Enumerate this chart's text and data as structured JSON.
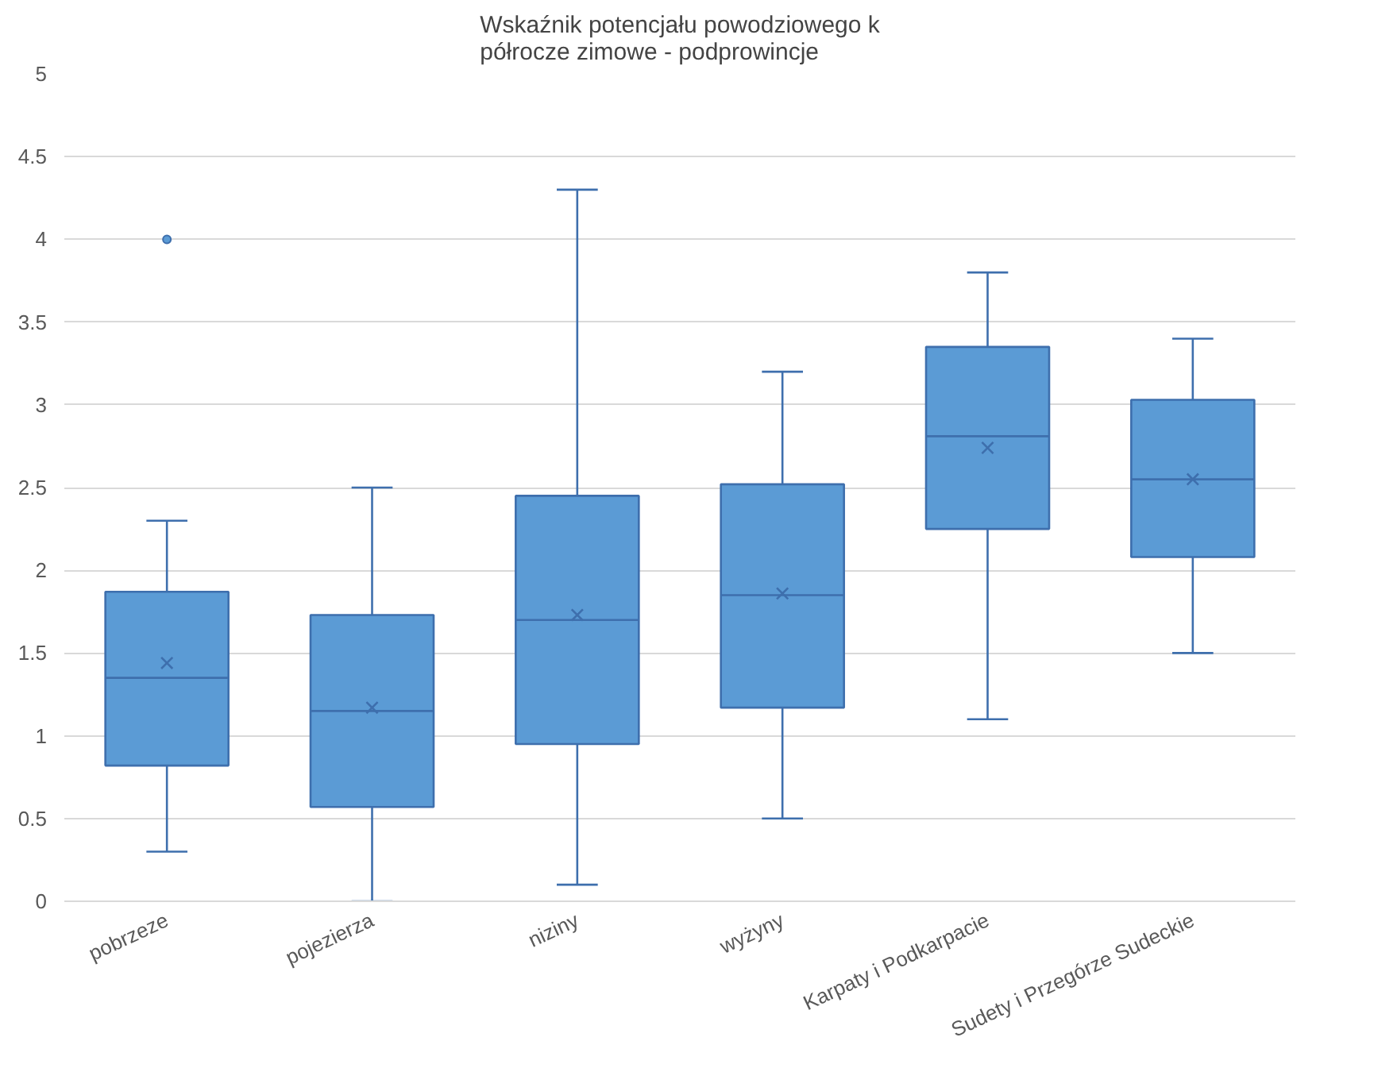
{
  "chart_data": {
    "type": "box",
    "title": "Wskaźnik potencjału powodziowego k\n półrocze zimowe -  podprowincje",
    "categories": [
      "pobrzeze",
      "pojezierza",
      "niziny",
      "wyżyny",
      "Karpaty i Podkarpacie",
      "Sudety i Przegórze Sudeckie"
    ],
    "color": "#5b9bd5",
    "boxes": [
      {
        "low": 0.3,
        "q1": 0.82,
        "median": 1.35,
        "q3": 1.87,
        "high": 2.3,
        "mean": 1.44,
        "outliers": [
          4.0
        ]
      },
      {
        "low": 0,
        "q1": 0.57,
        "median": 1.15,
        "q3": 1.73,
        "high": 2.5,
        "mean": 1.17
      },
      {
        "low": 0.1,
        "q1": 0.95,
        "median": 1.7,
        "q3": 2.45,
        "high": 4.3,
        "mean": 1.73
      },
      {
        "low": 0.5,
        "q1": 1.17,
        "median": 1.85,
        "q3": 2.52,
        "high": 3.2,
        "mean": 1.86
      },
      {
        "low": 1.1,
        "q1": 2.25,
        "median": 2.81,
        "q3": 3.35,
        "high": 3.8,
        "mean": 2.74
      },
      {
        "low": 1.5,
        "q1": 2.08,
        "median": 2.55,
        "q3": 3.03,
        "high": 3.4,
        "mean": 2.55
      }
    ],
    "ylim": [
      0,
      5
    ],
    "yticks": [
      0,
      0.5,
      1,
      1.5,
      2,
      2.5,
      3,
      3.5,
      4,
      4.5,
      5
    ],
    "grid": "y"
  }
}
